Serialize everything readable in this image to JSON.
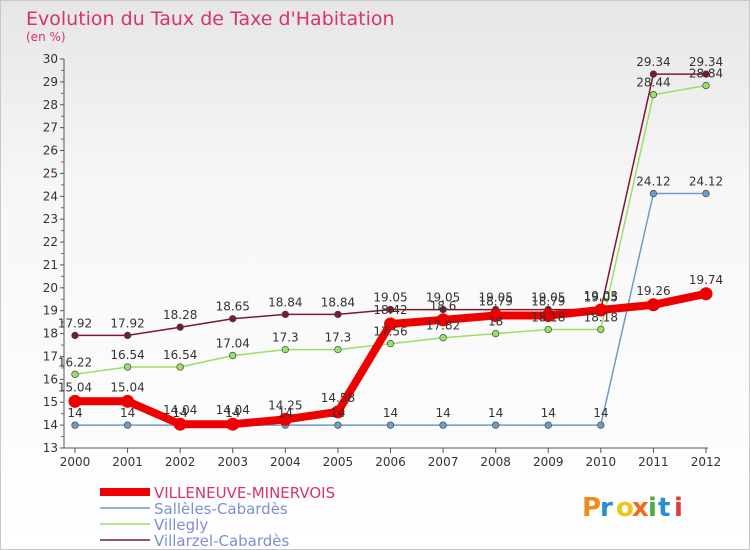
{
  "chart_data": {
    "type": "line",
    "title": "Evolution du Taux de Taxe d'Habitation",
    "subtitle": "(en %)",
    "x": [
      "2000",
      "2001",
      "2002",
      "2003",
      "2004",
      "2005",
      "2006",
      "2007",
      "2008",
      "2009",
      "2010",
      "2011",
      "2012"
    ],
    "ylim": [
      13,
      30
    ],
    "yticks": [
      13,
      14,
      15,
      16,
      17,
      18,
      19,
      20,
      21,
      22,
      23,
      24,
      25,
      26,
      27,
      28,
      29,
      30
    ],
    "grid": false,
    "legend_position": "bottom-left",
    "series": [
      {
        "name": "Villarzel-Cabardès",
        "color": "#7b1a2c",
        "values": [
          17.92,
          17.92,
          18.28,
          18.65,
          18.84,
          18.84,
          19.05,
          19.05,
          19.05,
          19.05,
          19.05,
          29.34,
          29.34
        ],
        "labels": [
          "17.92",
          "17.92",
          "18.28",
          "18.65",
          "18.84",
          "18.84",
          "19.05",
          "19.05",
          "19.05",
          "19.05",
          "19.05",
          "29.34",
          "29.34"
        ]
      },
      {
        "name": "Villegly",
        "color": "#99e066",
        "values": [
          16.22,
          16.54,
          16.54,
          17.04,
          17.3,
          17.3,
          17.56,
          17.82,
          18,
          18.18,
          18.18,
          28.44,
          28.84
        ],
        "labels": [
          "16.22",
          "16.54",
          "16.54",
          "17.04",
          "17.3",
          "17.3",
          "17.56",
          "17.82",
          "18",
          "18.18",
          "18.18",
          "28.44",
          "28.84"
        ]
      },
      {
        "name": "Sallèles-Cabardès",
        "color": "#6b9ccc",
        "values": [
          14,
          14,
          14,
          14,
          14,
          14,
          14,
          14,
          14,
          14,
          14,
          24.12,
          24.12
        ],
        "labels": [
          "14",
          "14",
          "14",
          "14",
          "14",
          "14",
          "14",
          "14",
          "14",
          "14",
          "14",
          "24.12",
          "24.12"
        ]
      },
      {
        "name": "VILLENEUVE-MINERVOIS",
        "color": "#ee0000",
        "values": [
          15.04,
          15.04,
          14.04,
          14.04,
          14.25,
          14.58,
          18.42,
          18.6,
          18.79,
          18.79,
          19.03,
          19.26,
          19.74
        ],
        "labels": [
          "15.04",
          "15.04",
          "14.04",
          "14.04",
          "14.25",
          "14.58",
          "18.42",
          "18.6",
          "18.79",
          "18.79",
          "19.03",
          "19.26",
          "19.74"
        ]
      }
    ],
    "legend": [
      "VILLENEUVE-MINERVOIS",
      "Sallèles-Cabardès",
      "Villegly",
      "Villarzel-Cabardès"
    ]
  },
  "logo": {
    "text": "Proxiti",
    "colors": [
      "#f08a1c",
      "#2a8fcf",
      "#f0c419",
      "#ee6b1c",
      "#44b043",
      "#2a8fcf",
      "#e23b3b"
    ]
  }
}
